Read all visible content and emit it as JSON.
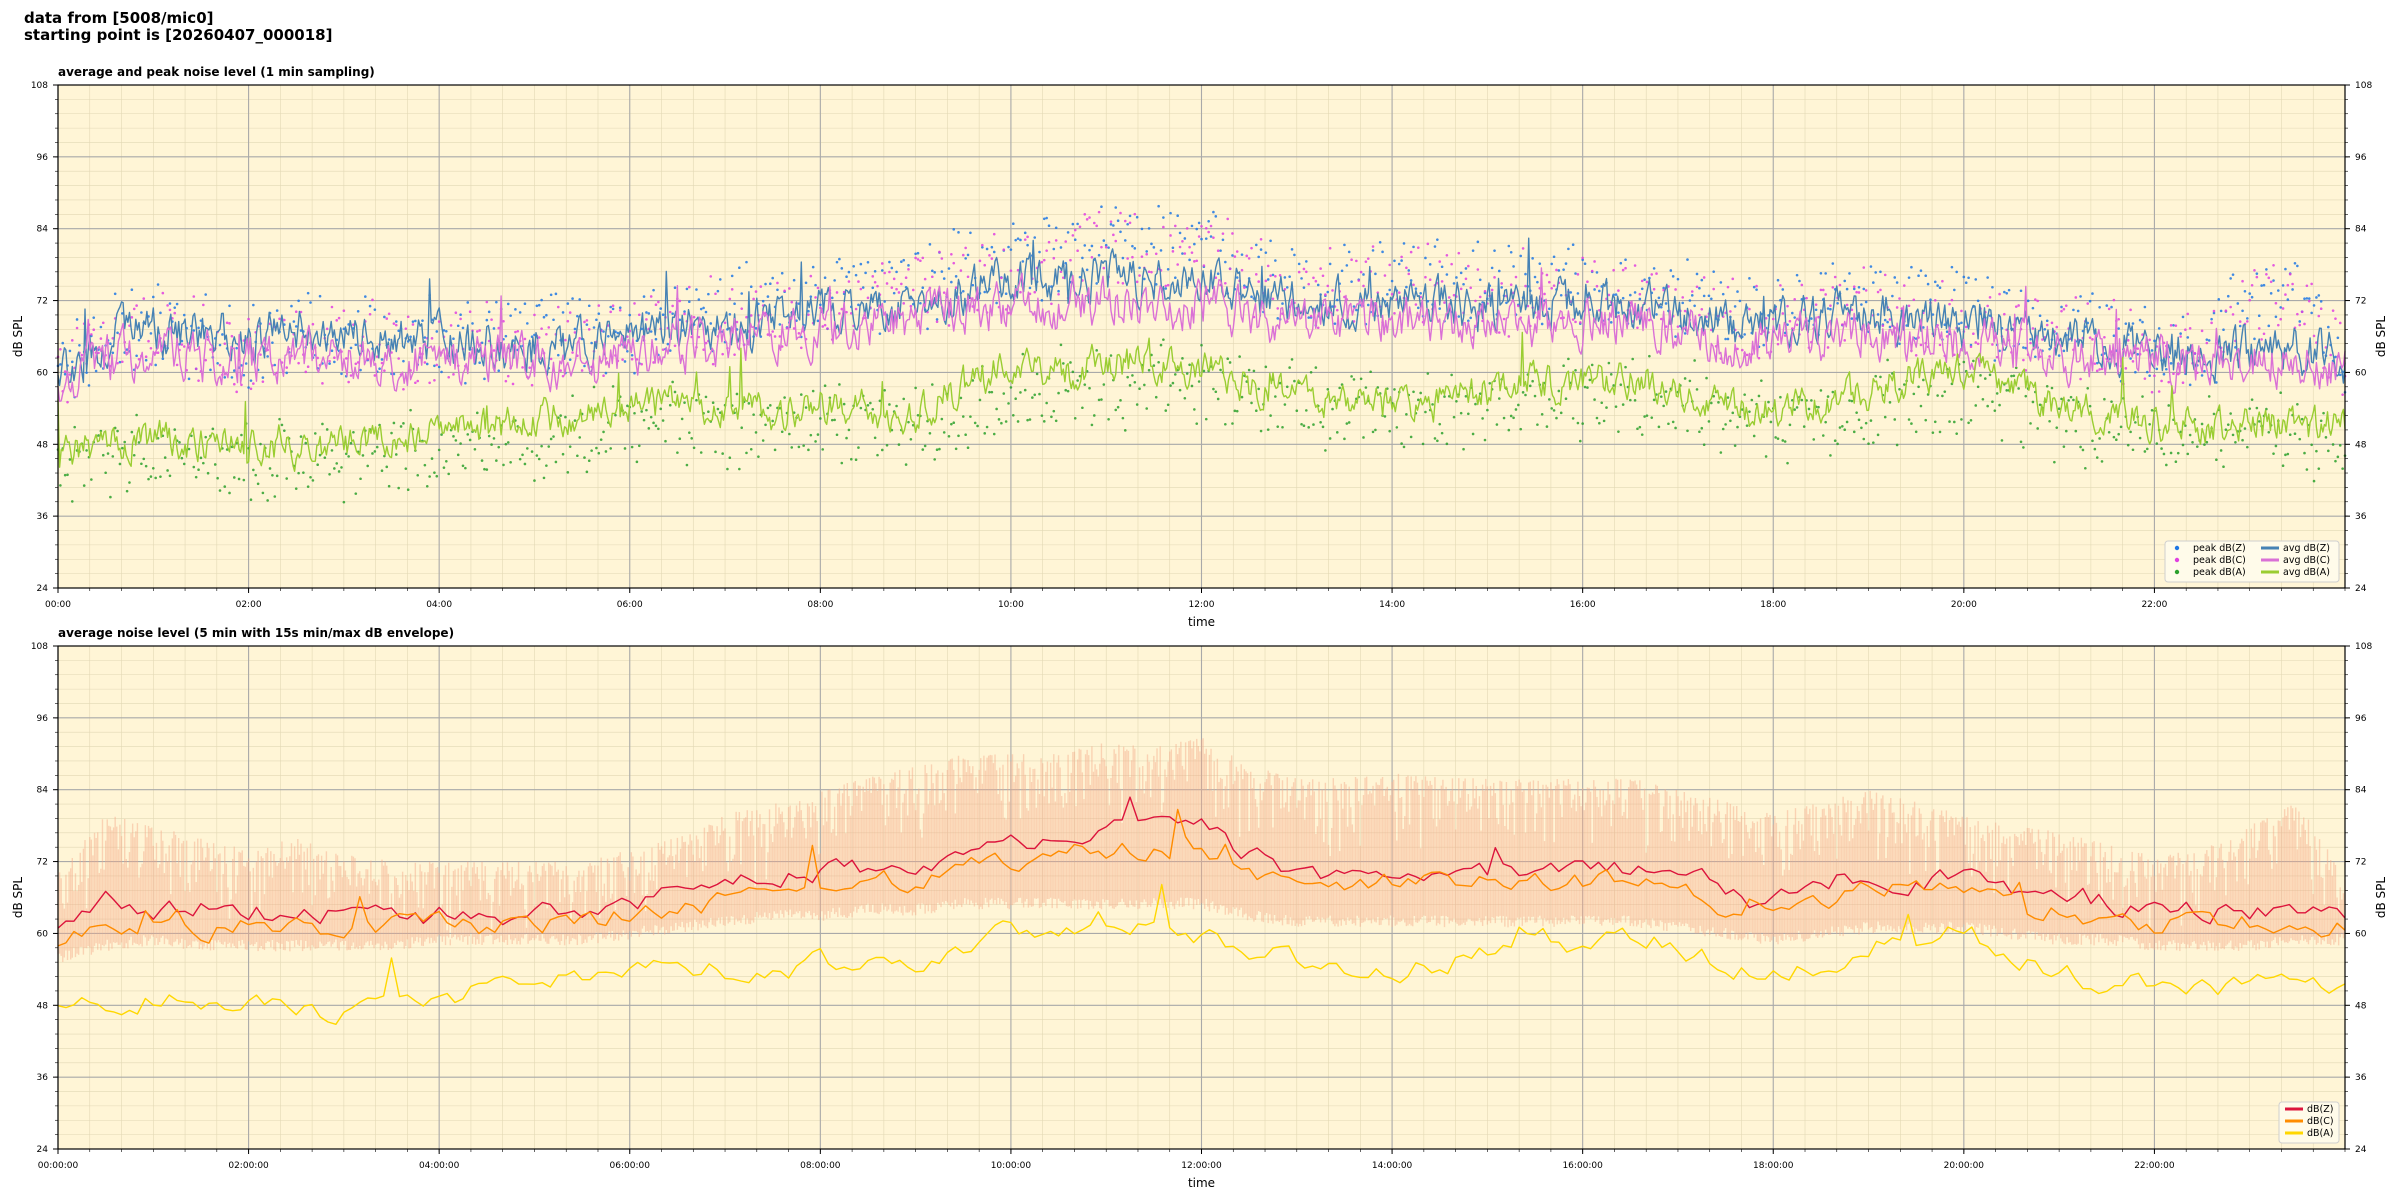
{
  "header": {
    "line1": "data from [5008/mic0]",
    "line2": "starting point is [20260407_000018]"
  },
  "colors": {
    "background": "#fff5d6",
    "peak_z": "#1f77e4",
    "peak_c": "#e040e0",
    "peak_a": "#2ca02c",
    "avg_z": "#4682b4",
    "avg_c": "#da70d6",
    "avg_a": "#9acd32",
    "dbz": "#dc143c",
    "dbc": "#ff8c00",
    "dba": "#ffd700",
    "envelope": "#f4a988"
  },
  "chart_data": [
    {
      "type": "line",
      "title": "average and peak noise level (1 min sampling)",
      "xlabel": "time",
      "ylabel": "dB SPL",
      "ylabel_right": "dB SPL",
      "xlim": [
        0,
        24
      ],
      "ylim": [
        24,
        108
      ],
      "yticks": [
        24,
        36,
        48,
        60,
        72,
        84,
        96,
        108
      ],
      "xticks": [
        0,
        2,
        4,
        6,
        8,
        10,
        12,
        14,
        16,
        18,
        20,
        22
      ],
      "xtick_labels": [
        "00:00",
        "02:00",
        "04:00",
        "06:00",
        "08:00",
        "10:00",
        "12:00",
        "14:00",
        "16:00",
        "18:00",
        "20:00",
        "22:00"
      ],
      "grid": true,
      "legend_position": "bottom-right",
      "x": [
        0,
        0.5,
        1,
        1.5,
        2,
        2.5,
        3,
        3.5,
        4,
        4.5,
        5,
        5.5,
        6,
        6.5,
        7,
        7.5,
        8,
        8.5,
        9,
        9.5,
        10,
        10.5,
        11,
        11.5,
        12,
        12.5,
        13,
        13.5,
        14,
        14.5,
        15,
        15.5,
        16,
        16.5,
        17,
        17.5,
        18,
        18.5,
        19,
        19.5,
        20,
        20.5,
        21,
        21.5,
        22,
        22.5,
        23,
        23.5,
        24
      ],
      "series": [
        {
          "name": "peak dB(Z)",
          "kind": "scatter",
          "color_key": "peak_z",
          "values": [
            65,
            72,
            74,
            72,
            70,
            73,
            72,
            71,
            72,
            71,
            72,
            72,
            73,
            74,
            76,
            77,
            78,
            80,
            80,
            83,
            84,
            85,
            88,
            87,
            88,
            83,
            80,
            81,
            82,
            81,
            80,
            80,
            80,
            80,
            79,
            76,
            76,
            78,
            78,
            77,
            76,
            74,
            74,
            72,
            70,
            69,
            78,
            80,
            68
          ]
        },
        {
          "name": "peak dB(C)",
          "kind": "scatter",
          "color_key": "peak_c",
          "values": [
            64,
            71,
            73,
            71,
            69,
            72,
            71,
            70,
            71,
            70,
            71,
            71,
            72,
            73,
            75,
            76,
            77,
            79,
            79,
            82,
            83,
            84,
            87,
            86,
            87,
            82,
            79,
            80,
            81,
            80,
            79,
            79,
            79,
            79,
            78,
            75,
            75,
            77,
            77,
            76,
            75,
            73,
            73,
            71,
            69,
            68,
            77,
            79,
            67
          ]
        },
        {
          "name": "peak dB(A)",
          "kind": "scatter",
          "color_key": "peak_a",
          "values": [
            50,
            52,
            53,
            52,
            51,
            51,
            51,
            52,
            53,
            54,
            55,
            56,
            57,
            58,
            57,
            57,
            58,
            58,
            57,
            60,
            62,
            63,
            63,
            64,
            64,
            63,
            61,
            60,
            60,
            60,
            61,
            62,
            62,
            63,
            62,
            59,
            57,
            58,
            60,
            61,
            62,
            60,
            58,
            57,
            56,
            56,
            55,
            55,
            54
          ]
        },
        {
          "name": "avg dB(Z)",
          "kind": "line",
          "color_key": "avg_z",
          "values": [
            60,
            65,
            67,
            66,
            66,
            67,
            66,
            65,
            65,
            65,
            64,
            64,
            66,
            67,
            68,
            69,
            70,
            71,
            72,
            74,
            75,
            75,
            76,
            75,
            76,
            73,
            71,
            71,
            72,
            71,
            71,
            71,
            71,
            71,
            70,
            68,
            67,
            69,
            70,
            69,
            68,
            67,
            66,
            65,
            64,
            63,
            64,
            64,
            62
          ]
        },
        {
          "name": "avg dB(C)",
          "kind": "line",
          "color_key": "avg_c",
          "values": [
            58,
            62,
            63,
            62,
            62,
            63,
            62,
            62,
            62,
            62,
            62,
            62,
            63,
            64,
            65,
            66,
            67,
            68,
            69,
            70,
            71,
            71,
            72,
            71,
            72,
            70,
            68,
            68,
            69,
            68,
            68,
            68,
            68,
            68,
            67,
            65,
            64,
            66,
            67,
            66,
            65,
            64,
            63,
            62,
            62,
            61,
            62,
            62,
            60
          ]
        },
        {
          "name": "avg dB(A)",
          "kind": "line",
          "color_key": "avg_a",
          "values": [
            46,
            48,
            49,
            48,
            48,
            47,
            48,
            48,
            50,
            51,
            52,
            53,
            54,
            55,
            54,
            53,
            55,
            54,
            53,
            58,
            61,
            60,
            62,
            61,
            61,
            58,
            56,
            55,
            54,
            55,
            57,
            59,
            58,
            59,
            58,
            55,
            53,
            55,
            57,
            59,
            60,
            58,
            54,
            53,
            52,
            51,
            51,
            51,
            51
          ]
        }
      ]
    },
    {
      "type": "line",
      "title": "average noise level (5 min with 15s min/max dB envelope)",
      "xlabel": "time",
      "ylabel": "dB SPL",
      "ylabel_right": "dB SPL",
      "xlim": [
        0,
        24
      ],
      "ylim": [
        24,
        108
      ],
      "yticks": [
        24,
        36,
        48,
        60,
        72,
        84,
        96,
        108
      ],
      "xticks": [
        0,
        2,
        4,
        6,
        8,
        10,
        12,
        14,
        16,
        18,
        20,
        22
      ],
      "xtick_labels": [
        "00:00:00",
        "02:00:00",
        "04:00:00",
        "06:00:00",
        "08:00:00",
        "10:00:00",
        "12:00:00",
        "14:00:00",
        "16:00:00",
        "18:00:00",
        "20:00:00",
        "22:00:00"
      ],
      "grid": true,
      "legend_position": "bottom-right",
      "x": [
        0,
        0.5,
        1,
        1.5,
        2,
        2.5,
        3,
        3.5,
        4,
        4.5,
        5,
        5.5,
        6,
        6.5,
        7,
        7.5,
        8,
        8.5,
        9,
        9.5,
        10,
        10.5,
        11,
        11.5,
        12,
        12.5,
        13,
        13.5,
        14,
        14.5,
        15,
        15.5,
        16,
        16.5,
        17,
        17.5,
        18,
        18.5,
        19,
        19.5,
        20,
        20.5,
        21,
        21.5,
        22,
        22.5,
        23,
        23.5,
        24
      ],
      "envelope": {
        "min": [
          57,
          59,
          60,
          59,
          59,
          59,
          59,
          59,
          60,
          60,
          60,
          60,
          61,
          62,
          63,
          64,
          64,
          65,
          65,
          66,
          66,
          66,
          66,
          66,
          66,
          64,
          63,
          63,
          63,
          63,
          63,
          63,
          63,
          63,
          62,
          61,
          60,
          61,
          62,
          62,
          62,
          61,
          60,
          60,
          59,
          59,
          59,
          60,
          60
        ],
        "max": [
          70,
          80,
          78,
          76,
          74,
          76,
          74,
          72,
          72,
          72,
          72,
          72,
          74,
          76,
          80,
          82,
          84,
          86,
          88,
          90,
          90,
          90,
          92,
          91,
          93,
          88,
          86,
          86,
          87,
          86,
          86,
          86,
          86,
          86,
          84,
          82,
          80,
          82,
          84,
          82,
          80,
          78,
          77,
          75,
          73,
          74,
          78,
          82,
          70
        ]
      },
      "series": [
        {
          "name": "dB(Z)",
          "kind": "line",
          "color_key": "dbz",
          "values": [
            61,
            66,
            64,
            64,
            64,
            63,
            63,
            63,
            63,
            63,
            63,
            64,
            65,
            66,
            67,
            69,
            70,
            71,
            72,
            74,
            76,
            75,
            78,
            78,
            78,
            73,
            70,
            70,
            72,
            71,
            71,
            71,
            72,
            71,
            70,
            67,
            65,
            68,
            70,
            69,
            69,
            68,
            67,
            65,
            64,
            64,
            64,
            64,
            62
          ]
        },
        {
          "name": "dB(C)",
          "kind": "line",
          "color_key": "dbc",
          "values": [
            58,
            61,
            62,
            61,
            61,
            61,
            61,
            61,
            61,
            61,
            62,
            62,
            63,
            64,
            65,
            66,
            67,
            68,
            69,
            71,
            72,
            72,
            74,
            74,
            75,
            70,
            68,
            68,
            69,
            69,
            69,
            69,
            69,
            69,
            68,
            65,
            63,
            66,
            67,
            67,
            66,
            65,
            64,
            63,
            62,
            62,
            62,
            62,
            61
          ]
        },
        {
          "name": "dB(A)",
          "kind": "line",
          "color_key": "dba",
          "values": [
            48,
            48,
            49,
            48,
            48,
            47,
            47,
            48,
            49,
            51,
            52,
            53,
            54,
            55,
            54,
            54,
            55,
            54,
            53,
            57,
            61,
            59,
            62,
            60,
            60,
            58,
            56,
            55,
            53,
            55,
            57,
            59,
            58,
            59,
            58,
            55,
            53,
            55,
            58,
            59,
            60,
            57,
            53,
            52,
            52,
            51,
            51,
            51,
            50
          ]
        }
      ]
    }
  ]
}
